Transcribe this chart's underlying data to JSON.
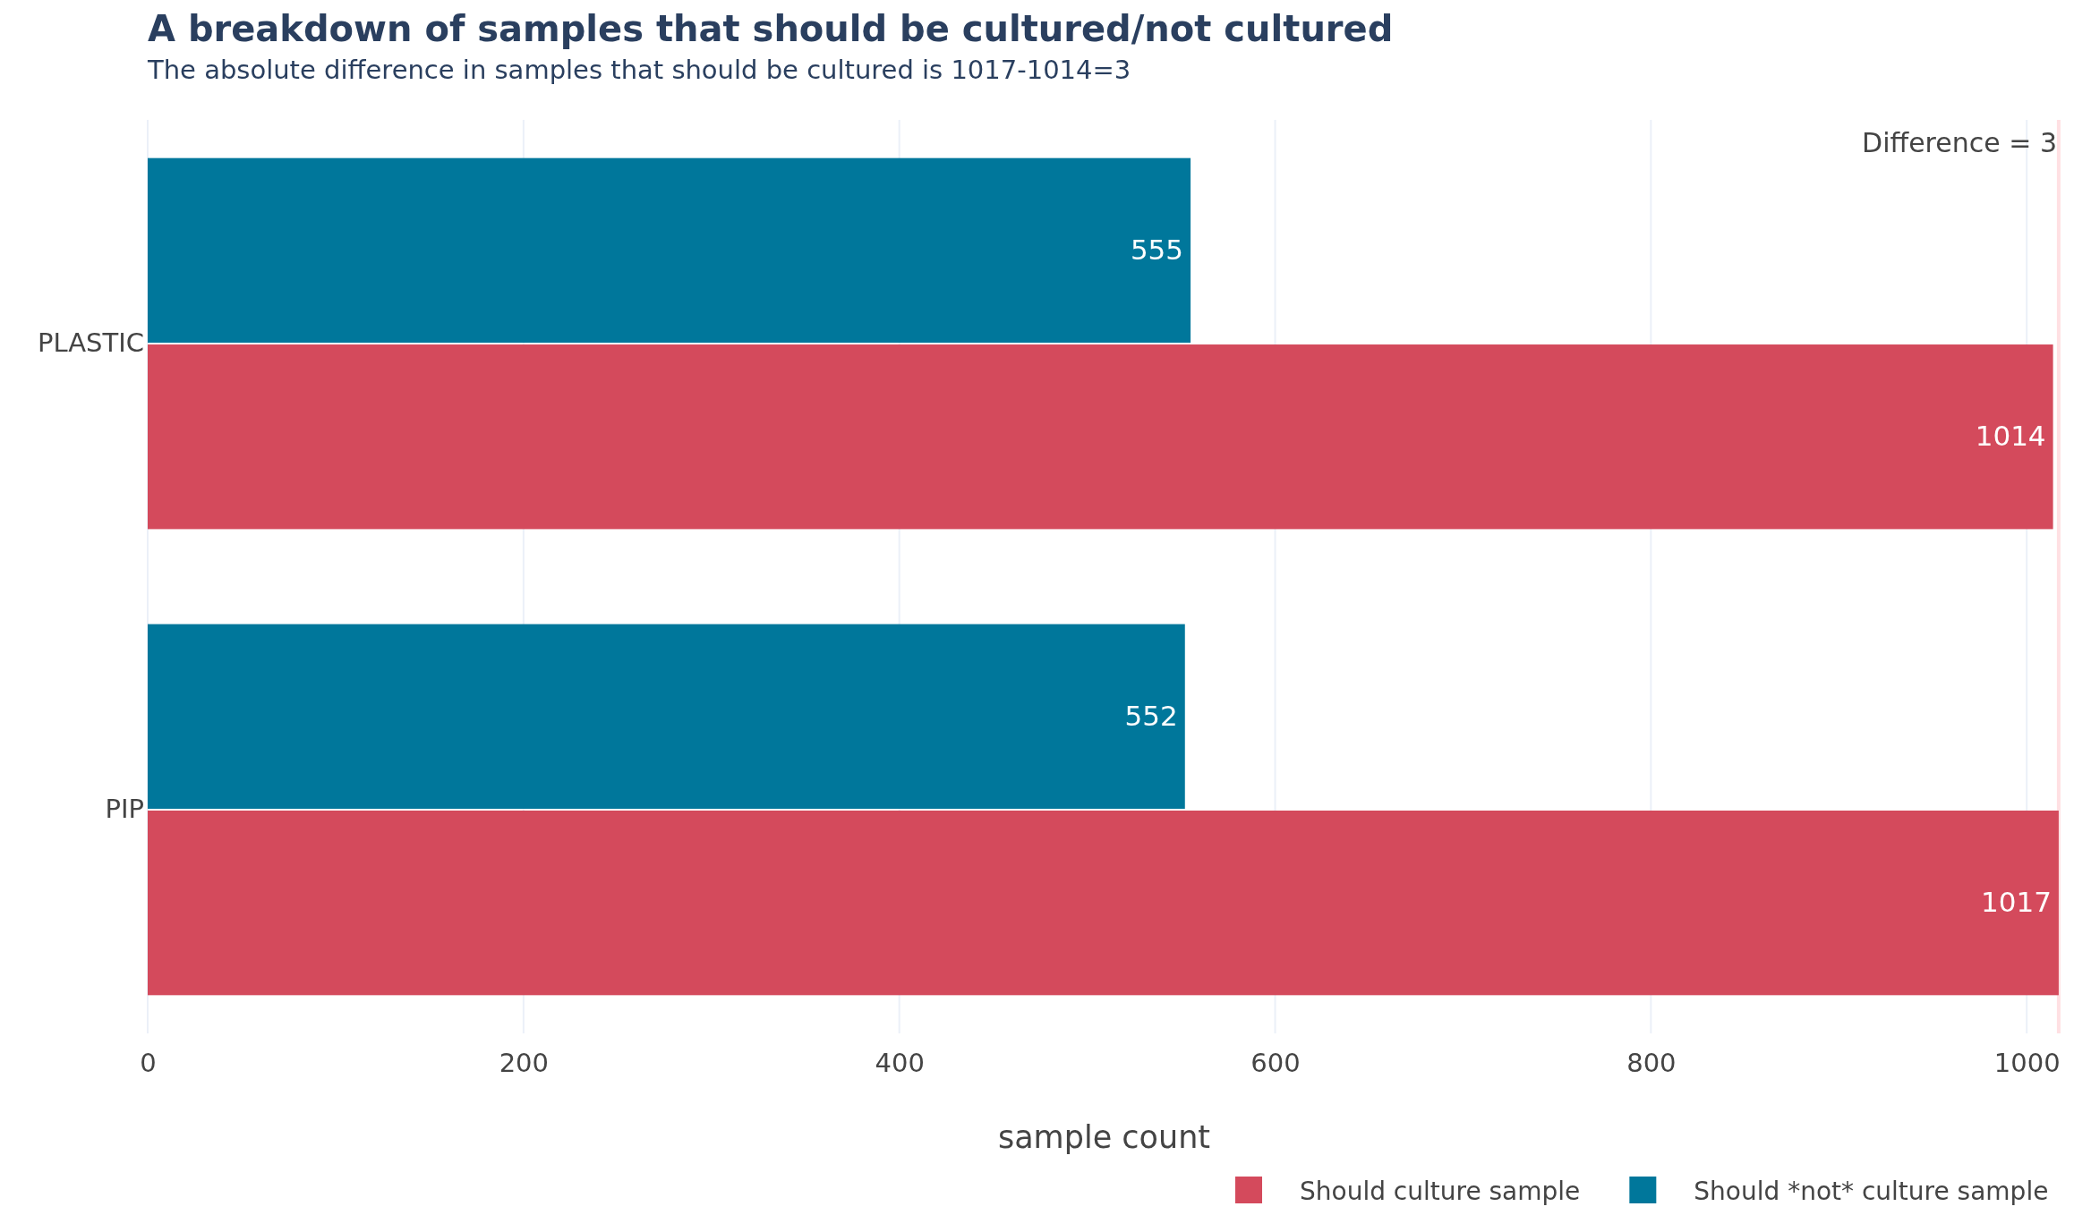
{
  "chart_data": {
    "type": "bar",
    "orientation": "horizontal",
    "title": "A breakdown of samples that should be cultured/not cultured",
    "subtitle": "The absolute difference in samples that should be cultured is 1017-1014=3",
    "xlabel": "sample count",
    "categories": [
      "PLASTIC",
      "PIP"
    ],
    "series": [
      {
        "name": "Should culture sample",
        "color": "#d44a5c",
        "values": [
          1014,
          1017
        ]
      },
      {
        "name": "Should *not* culture sample",
        "color": "#00779b",
        "values": [
          555,
          552
        ]
      }
    ],
    "xlim": [
      0,
      1018
    ],
    "xticks": [
      0,
      200,
      400,
      600,
      800,
      1000
    ],
    "ref_lines": [
      {
        "axis": "x",
        "value": 1017,
        "color": "#ffe0e3"
      }
    ],
    "annotations": [
      "Difference = 3"
    ],
    "data_labels": true,
    "grid": "x",
    "legend": "bottom right"
  }
}
